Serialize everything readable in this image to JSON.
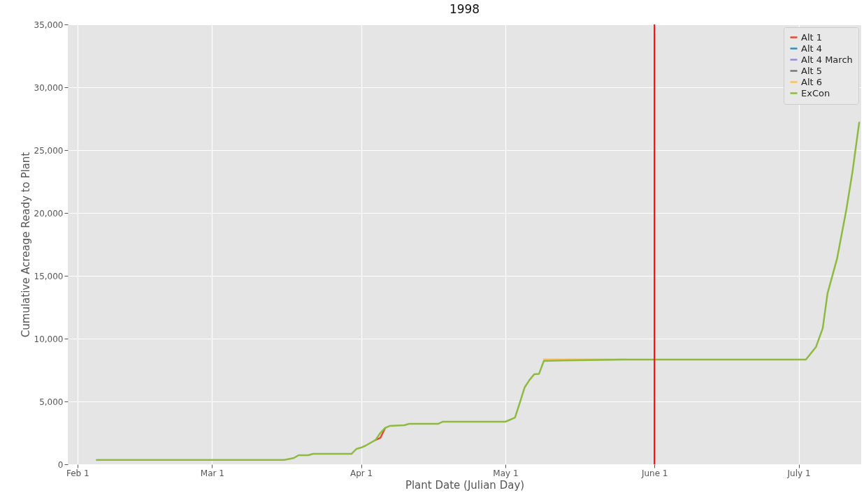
{
  "chart_data": {
    "type": "line",
    "title": "1998",
    "xlabel": "Plant Date (Julian Day)",
    "ylabel": "Cumulative Acreage Ready to Plant",
    "x": [
      "1998-02-05",
      "1998-03-16",
      "1998-03-18",
      "1998-03-19",
      "1998-03-21",
      "1998-03-22",
      "1998-03-30",
      "1998-03-31",
      "1998-04-01",
      "1998-04-02",
      "1998-04-04",
      "1998-04-05",
      "1998-04-06",
      "1998-04-07",
      "1998-04-10",
      "1998-04-11",
      "1998-04-17",
      "1998-04-18",
      "1998-05-01",
      "1998-05-03",
      "1998-05-04",
      "1998-05-05",
      "1998-05-06",
      "1998-05-07",
      "1998-05-08",
      "1998-05-09",
      "1998-05-13",
      "1998-05-26",
      "1998-07-02T12:00",
      "1998-07-04T14:00",
      "1998-07-06",
      "1998-07-07",
      "1998-07-09",
      "1998-07-10T22:00",
      "1998-07-12T05:00",
      "1998-07-13T14:00"
    ],
    "series": [
      {
        "name": "Alt 1",
        "color": "#e24a33",
        "values": [
          null,
          null,
          null,
          null,
          null,
          null,
          null,
          null,
          null,
          null,
          1940,
          2100,
          2890,
          null,
          null,
          null,
          null,
          null,
          null,
          null,
          null,
          null,
          null,
          null,
          null,
          null,
          null,
          null,
          null,
          null,
          null,
          null,
          null,
          null,
          null,
          null
        ]
      },
      {
        "name": "Alt 4",
        "color": "#348abd",
        "values": [
          null,
          null,
          null,
          null,
          null,
          null,
          null,
          null,
          null,
          null,
          null,
          null,
          null,
          null,
          null,
          null,
          null,
          null,
          null,
          null,
          null,
          null,
          null,
          null,
          null,
          null,
          null,
          null,
          null,
          null,
          null,
          null,
          null,
          null,
          null,
          null
        ]
      },
      {
        "name": "Alt 4 March",
        "color": "#988ed5",
        "values": [
          null,
          null,
          null,
          null,
          null,
          null,
          null,
          null,
          null,
          null,
          null,
          null,
          null,
          null,
          null,
          null,
          null,
          null,
          null,
          null,
          null,
          null,
          null,
          null,
          null,
          null,
          null,
          null,
          null,
          null,
          null,
          null,
          null,
          null,
          null,
          null
        ]
      },
      {
        "name": "Alt 5",
        "color": "#777777",
        "values": [
          null,
          null,
          null,
          null,
          null,
          null,
          null,
          null,
          null,
          null,
          null,
          null,
          null,
          null,
          null,
          null,
          null,
          null,
          null,
          null,
          null,
          null,
          null,
          null,
          null,
          null,
          null,
          null,
          null,
          null,
          null,
          null,
          null,
          null,
          null,
          null
        ]
      },
      {
        "name": "Alt 6",
        "color": "#fbc15e",
        "values": [
          null,
          null,
          null,
          null,
          null,
          null,
          null,
          null,
          null,
          null,
          null,
          null,
          null,
          null,
          null,
          null,
          null,
          null,
          null,
          null,
          null,
          null,
          null,
          null,
          null,
          8350,
          8350,
          8350,
          null,
          null,
          null,
          null,
          null,
          null,
          null,
          null
        ]
      },
      {
        "name": "ExCon",
        "color": "#8eba42",
        "values": [
          350,
          350,
          500,
          720,
          720,
          830,
          830,
          1220,
          1330,
          1500,
          1940,
          2500,
          2890,
          3060,
          3110,
          3220,
          3220,
          3390,
          3390,
          3720,
          4890,
          6110,
          6700,
          7170,
          7200,
          8220,
          8260,
          8330,
          8330,
          9330,
          10830,
          13600,
          16400,
          20280,
          23330,
          27200
        ]
      }
    ],
    "xlim": [
      "1998-01-30",
      "1998-07-14"
    ],
    "xticks": [
      {
        "value": "1998-02-01",
        "label": "Feb 1"
      },
      {
        "value": "1998-03-01",
        "label": "Mar 1"
      },
      {
        "value": "1998-04-01",
        "label": "Apr 1"
      },
      {
        "value": "1998-05-01",
        "label": "May 1"
      },
      {
        "value": "1998-06-01",
        "label": "June 1"
      },
      {
        "value": "1998-07-01",
        "label": "July 1"
      }
    ],
    "ylim": [
      0,
      35000
    ],
    "yticks": [
      {
        "value": 0,
        "label": "0"
      },
      {
        "value": 5000,
        "label": "5,000"
      },
      {
        "value": 10000,
        "label": "10,000"
      },
      {
        "value": 15000,
        "label": "15,000"
      },
      {
        "value": 20000,
        "label": "20,000"
      },
      {
        "value": 25000,
        "label": "25,000"
      },
      {
        "value": 30000,
        "label": "30,000"
      },
      {
        "value": 35000,
        "label": "35,000"
      }
    ],
    "ref_lines": [
      {
        "axis": "x",
        "value": "1998-06-01",
        "color": "#ff0000"
      }
    ],
    "grid": true,
    "legend": "top right",
    "marker": "none",
    "line_style": "solid"
  }
}
